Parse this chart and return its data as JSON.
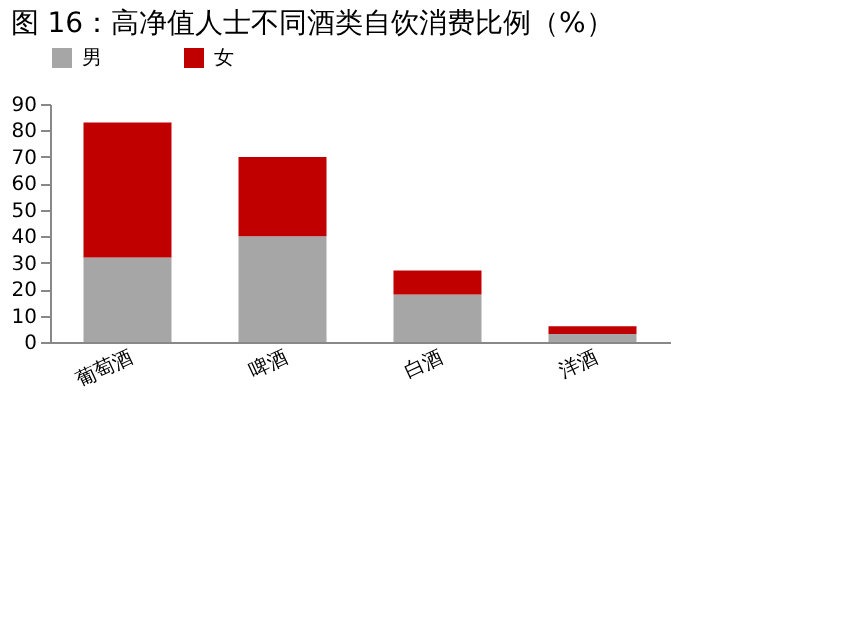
{
  "chart_data": {
    "type": "bar",
    "title": "图 16：高净值人士不同酒类自饮消费比例（%）",
    "categories": [
      "葡萄酒",
      "啤酒",
      "白酒",
      "洋酒"
    ],
    "series": [
      {
        "name": "男",
        "color": "#a6a6a6",
        "values": [
          32,
          40,
          18,
          3
        ]
      },
      {
        "name": "女",
        "color": "#c00000",
        "values": [
          51,
          30,
          9,
          3
        ]
      }
    ],
    "stacked": true,
    "ylim": [
      0,
      90
    ],
    "yticks": [
      0,
      10,
      20,
      30,
      40,
      50,
      60,
      70,
      80,
      90
    ],
    "grid": false,
    "legend": "top"
  }
}
